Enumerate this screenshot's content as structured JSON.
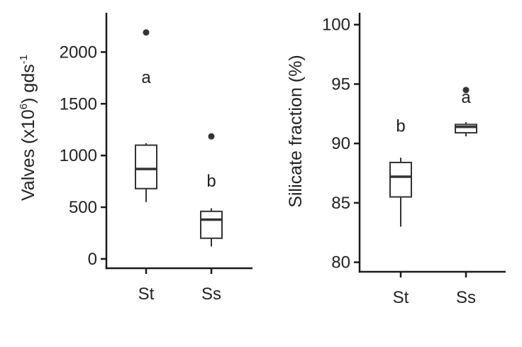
{
  "chart_data": [
    {
      "type": "box",
      "ylabel": "Valves (x10",
      "ylabel_sup": "6",
      "ylabel_mid": ") gds",
      "ylabel_sup2": "-1",
      "categories": [
        "St",
        "Ss"
      ],
      "ylim": [
        -90,
        2380
      ],
      "yticks": [
        0,
        500,
        1000,
        1500,
        2000
      ],
      "boxes": [
        {
          "category": "St",
          "whisker_low": 550,
          "q1": 680,
          "median": 870,
          "q3": 1100,
          "whisker_high": 1120,
          "outliers": [
            2190
          ],
          "letter": "a",
          "letter_value": 1700
        },
        {
          "category": "Ss",
          "whisker_low": 120,
          "q1": 200,
          "median": 380,
          "q3": 460,
          "whisker_high": 490,
          "outliers": [
            1185
          ],
          "letter": "b",
          "letter_value": 700
        }
      ]
    },
    {
      "type": "box",
      "ylabel": "Silicate fraction (%)",
      "categories": [
        "St",
        "Ss"
      ],
      "ylim": [
        79.2,
        101
      ],
      "yticks": [
        80,
        85,
        90,
        95,
        100
      ],
      "boxes": [
        {
          "category": "St",
          "whisker_low": 83,
          "q1": 85.5,
          "median": 87.2,
          "q3": 88.4,
          "whisker_high": 88.8,
          "outliers": [],
          "letter": "b",
          "letter_value": 91
        },
        {
          "category": "Ss",
          "whisker_low": 90.6,
          "q1": 90.9,
          "median": 91.4,
          "q3": 91.6,
          "whisker_high": 91.8,
          "outliers": [
            94.5
          ],
          "letter": "a",
          "letter_value": 93.4
        }
      ]
    }
  ]
}
